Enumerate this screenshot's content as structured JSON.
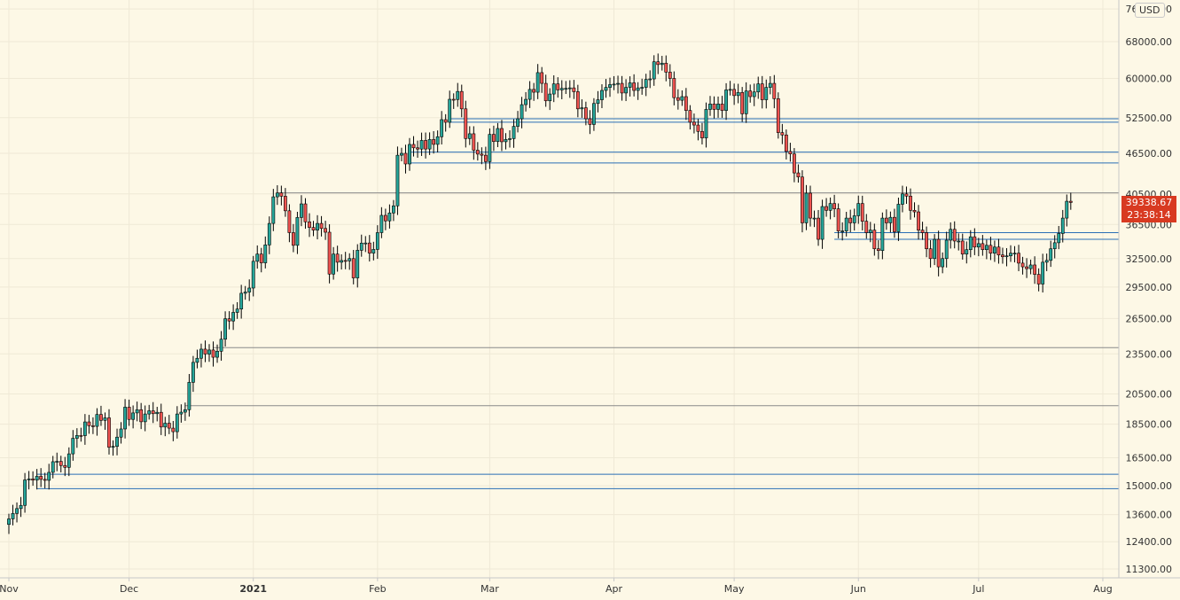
{
  "header": {
    "currency": "USD"
  },
  "last_price": {
    "value": "39338.67",
    "countdown": "23:38:14"
  },
  "chart_data": {
    "type": "candlestick",
    "title": "",
    "xlabel": "",
    "ylabel": "",
    "y_scale": "log",
    "ylim": [
      10800,
      78000
    ],
    "x_range": [
      "2020-11-01",
      "2021-08-06"
    ],
    "grid": true,
    "colors": {
      "up": "#26a69a",
      "down": "#ef5350",
      "wick": "#000000",
      "background": "#fdf8e6",
      "grid": "#efe9d6",
      "blue_line": "#2a6fb5",
      "gray_line": "#8a8a8a",
      "price_tag": "#d83a21"
    },
    "x_tick_labels": [
      {
        "date": "2020-11-01",
        "label": "Nov"
      },
      {
        "date": "2020-12-01",
        "label": "Dec"
      },
      {
        "date": "2021-01-01",
        "label": "2021",
        "bold": true
      },
      {
        "date": "2021-02-01",
        "label": "Feb"
      },
      {
        "date": "2021-03-01",
        "label": "Mar"
      },
      {
        "date": "2021-04-01",
        "label": "Apr"
      },
      {
        "date": "2021-05-01",
        "label": "May"
      },
      {
        "date": "2021-06-01",
        "label": "Jun"
      },
      {
        "date": "2021-07-01",
        "label": "Jul"
      },
      {
        "date": "2021-08-01",
        "label": "Aug"
      }
    ],
    "y_tick_labels": [
      "76000.00",
      "68000.00",
      "60000.00",
      "52500.00",
      "46500.00",
      "40500.00",
      "36500.00",
      "32500.00",
      "29500.00",
      "26500.00",
      "23500.00",
      "20500.00",
      "18500.00",
      "16500.00",
      "15000.00",
      "13600.00",
      "12400.00",
      "11300.00"
    ],
    "horizontal_lines": [
      {
        "price": 52300,
        "start": "2021-02-19",
        "color": "blue"
      },
      {
        "price": 51700,
        "start": "2021-02-19",
        "color": "blue"
      },
      {
        "price": 46700,
        "start": "2021-02-09",
        "color": "blue"
      },
      {
        "price": 45000,
        "start": "2021-02-09",
        "color": "blue"
      },
      {
        "price": 40650,
        "start": "2021-01-07",
        "color": "gray"
      },
      {
        "price": 35500,
        "start": "2021-05-26",
        "color": "blue"
      },
      {
        "price": 34700,
        "start": "2021-05-26",
        "color": "blue"
      },
      {
        "price": 24000,
        "start": "2020-12-22",
        "color": "gray"
      },
      {
        "price": 19700,
        "start": "2020-12-15",
        "color": "gray"
      },
      {
        "price": 15600,
        "start": "2020-11-08",
        "color": "blue"
      },
      {
        "price": 14850,
        "start": "2020-11-08",
        "color": "blue"
      }
    ],
    "closes": [
      13400,
      13650,
      13880,
      14030,
      15300,
      15350,
      15290,
      15490,
      15330,
      15280,
      15700,
      16280,
      16300,
      16070,
      15970,
      16720,
      17630,
      17800,
      17790,
      18640,
      18400,
      18360,
      19120,
      18740,
      18900,
      17100,
      17150,
      17700,
      18200,
      19600,
      18800,
      19220,
      19430,
      18650,
      19150,
      19360,
      19170,
      19260,
      18320,
      18560,
      18250,
      18030,
      19150,
      19270,
      19430,
      21330,
      22830,
      23150,
      23880,
      23480,
      23810,
      23230,
      23710,
      24700,
      26480,
      26280,
      27060,
      27370,
      28880,
      29000,
      29400,
      32200,
      33000,
      32030,
      34050,
      36630,
      40100,
      40630,
      40180,
      38240,
      35500,
      34000,
      37380,
      39150,
      36830,
      36130,
      35800,
      36630,
      36010,
      35550,
      30830,
      33000,
      32100,
      32290,
      32250,
      32500,
      30430,
      33430,
      34260,
      34270,
      33110,
      33530,
      35500,
      37650,
      36950,
      37960,
      38890,
      46200,
      46500,
      44850,
      47930,
      47380,
      47180,
      48590,
      47190,
      48740,
      47940,
      49200,
      52150,
      51680,
      55890,
      55850,
      57400,
      54100,
      48900,
      49700,
      47000,
      46380,
      46200,
      45200,
      49600,
      48400,
      50600,
      48370,
      48750,
      48880,
      50970,
      52300,
      54880,
      55880,
      57800,
      57250,
      61200,
      59000,
      55600,
      56900,
      58900,
      57700,
      58000,
      58000,
      58100,
      57350,
      54100,
      54300,
      52300,
      51300,
      55100,
      55800,
      57600,
      58200,
      58750,
      58850,
      59000,
      57100,
      58200,
      59100,
      57600,
      58100,
      58200,
      59800,
      59900,
      63500,
      62900,
      63200,
      61300,
      60000,
      56200,
      55700,
      56400,
      53800,
      51700,
      51200,
      50100,
      49000,
      54000,
      55000,
      54000,
      55000,
      53800,
      57700,
      57800,
      56600,
      57200,
      53200,
      57500,
      56400,
      57300,
      58900,
      55800,
      58200,
      59000,
      56000,
      49900,
      49500,
      46800,
      46400,
      43500,
      42900,
      36700,
      40600,
      37300,
      37300,
      34700,
      38800,
      38300,
      39200,
      38500,
      35700,
      35700,
      37300,
      36700,
      37600,
      39200,
      36900,
      35500,
      35800,
      33600,
      33400,
      37300,
      36700,
      37400,
      35600,
      39100,
      40500,
      40200,
      38300,
      38100,
      35800,
      35500,
      33600,
      32500,
      34700,
      31600,
      32500,
      34600,
      35900,
      34500,
      34500,
      33000,
      33500,
      35000,
      33800,
      34200,
      33500,
      34000,
      33100,
      33800,
      32900,
      32700,
      32800,
      33100,
      33100,
      32000,
      31600,
      31400,
      31800,
      30800,
      29800,
      32100,
      32300,
      33600,
      34300,
      35400,
      37300,
      39500,
      39340
    ],
    "axis_label_fraction_digits": 2
  }
}
